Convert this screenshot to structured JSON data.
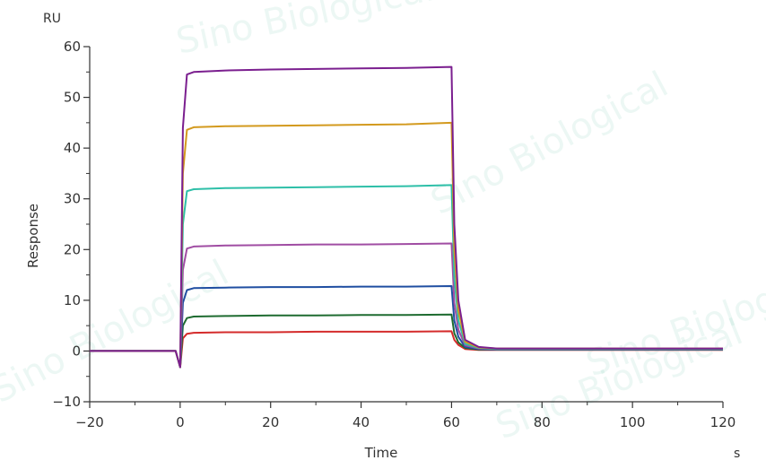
{
  "chart_data": {
    "type": "line",
    "title": "",
    "xlabel": "Time",
    "ylabel": "Response",
    "x_unit": "s",
    "y_unit": "RU",
    "xlim": [
      -20,
      120
    ],
    "ylim": [
      -10,
      60
    ],
    "x_ticks": [
      -20,
      0,
      20,
      40,
      60,
      80,
      100,
      120
    ],
    "y_ticks": [
      -10,
      0,
      10,
      20,
      30,
      40,
      50,
      60
    ],
    "grid": false,
    "legend": "none",
    "watermark": "Sino Biological",
    "series": [
      {
        "color": "#d42b2b",
        "x": [
          -20,
          -1,
          0,
          0.6,
          1.5,
          3,
          10,
          20,
          30,
          40,
          50,
          60,
          60.6,
          61.5,
          63,
          66,
          70,
          80,
          100,
          120
        ],
        "y": [
          0,
          0,
          -3.2,
          2.5,
          3.4,
          3.6,
          3.7,
          3.7,
          3.8,
          3.8,
          3.8,
          3.9,
          2.2,
          1.2,
          0.4,
          0.2,
          0.2,
          0.2,
          0.2,
          0.2
        ]
      },
      {
        "color": "#1e6b30",
        "x": [
          -20,
          -1,
          0,
          0.6,
          1.5,
          3,
          10,
          20,
          30,
          40,
          50,
          60,
          60.6,
          61.5,
          63,
          66,
          70,
          80,
          100,
          120
        ],
        "y": [
          0,
          0,
          -3.2,
          5.0,
          6.5,
          6.8,
          6.9,
          7.0,
          7.0,
          7.1,
          7.1,
          7.2,
          3.5,
          1.7,
          0.6,
          0.3,
          0.3,
          0.3,
          0.3,
          0.3
        ]
      },
      {
        "color": "#1f4ea1",
        "x": [
          -20,
          -1,
          0,
          0.6,
          1.5,
          3,
          10,
          20,
          30,
          40,
          50,
          60,
          60.6,
          61.5,
          63,
          66,
          70,
          80,
          100,
          120
        ],
        "y": [
          0,
          0,
          -3.2,
          9.5,
          12.0,
          12.4,
          12.5,
          12.6,
          12.6,
          12.7,
          12.7,
          12.8,
          6.0,
          2.8,
          0.8,
          0.4,
          0.3,
          0.3,
          0.3,
          0.3
        ]
      },
      {
        "color": "#a04da3",
        "x": [
          -20,
          -1,
          0,
          0.6,
          1.5,
          3,
          10,
          20,
          30,
          40,
          50,
          60,
          60.6,
          61.5,
          63,
          66,
          70,
          80,
          100,
          120
        ],
        "y": [
          0,
          0,
          -3.2,
          16.0,
          20.2,
          20.6,
          20.8,
          20.9,
          21.0,
          21.0,
          21.1,
          21.2,
          9.5,
          4.2,
          1.1,
          0.5,
          0.4,
          0.4,
          0.4,
          0.4
        ]
      },
      {
        "color": "#2ebfa8",
        "x": [
          -20,
          -1,
          0,
          0.6,
          1.5,
          3,
          10,
          20,
          30,
          40,
          50,
          60,
          60.6,
          61.5,
          63,
          66,
          70,
          80,
          100,
          120
        ],
        "y": [
          0,
          0,
          -3.2,
          25.0,
          31.5,
          31.9,
          32.1,
          32.2,
          32.3,
          32.4,
          32.5,
          32.7,
          14.5,
          6.0,
          1.4,
          0.6,
          0.4,
          0.4,
          0.4,
          0.4
        ]
      },
      {
        "color": "#d39a1e",
        "x": [
          -20,
          -1,
          0,
          0.6,
          1.5,
          3,
          10,
          20,
          30,
          40,
          50,
          60,
          60.6,
          61.5,
          63,
          66,
          70,
          80,
          100,
          120
        ],
        "y": [
          0,
          0,
          -3.2,
          35.0,
          43.6,
          44.1,
          44.3,
          44.4,
          44.5,
          44.6,
          44.7,
          45.0,
          20.0,
          8.0,
          1.8,
          0.7,
          0.5,
          0.5,
          0.5,
          0.5
        ]
      },
      {
        "color": "#7b1f8f",
        "x": [
          -20,
          -1,
          0,
          0.6,
          1.5,
          3,
          10,
          20,
          30,
          40,
          50,
          60,
          60.6,
          61.5,
          63,
          66,
          70,
          80,
          100,
          120
        ],
        "y": [
          0,
          0,
          -3.2,
          44.0,
          54.5,
          55.0,
          55.3,
          55.5,
          55.6,
          55.7,
          55.8,
          56.0,
          25.0,
          10.0,
          2.2,
          0.8,
          0.5,
          0.5,
          0.5,
          0.5
        ]
      }
    ]
  }
}
